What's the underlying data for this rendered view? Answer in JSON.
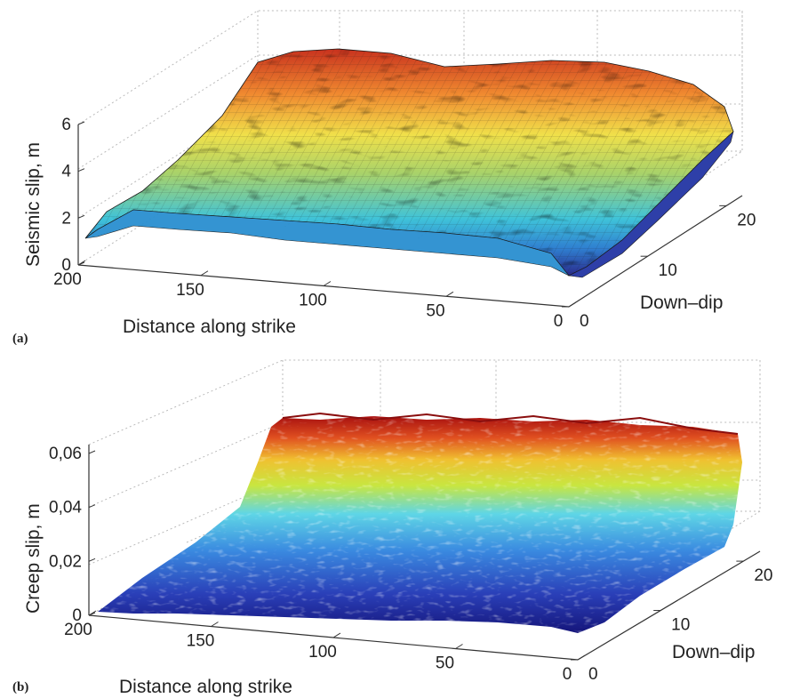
{
  "chart_data": [
    {
      "type": "surface",
      "panel_label": "(a)",
      "zlabel": "Seismic slip, m",
      "xlabel": "Distance along strike",
      "ylabel": "Down–dip",
      "x_ticks": [
        "200",
        "150",
        "100",
        "50",
        "0"
      ],
      "y_ticks": [
        "0",
        "10",
        "20"
      ],
      "z_ticks": [
        "0",
        "2",
        "4",
        "6"
      ],
      "xlim": [
        0,
        200
      ],
      "ylim": [
        0,
        22
      ],
      "zlim": [
        0,
        6
      ],
      "colormap": "jet",
      "mesh_lines": true,
      "grid": true,
      "surface_profile": {
        "description_values": "seismic slip rises with down-dip distance",
        "down_dip": [
          0,
          2,
          4,
          6,
          8,
          10,
          12,
          14,
          16,
          18,
          20,
          22
        ],
        "slip": [
          0.8,
          1.6,
          2.2,
          2.7,
          3.2,
          3.7,
          4.1,
          4.5,
          4.8,
          5.1,
          5.3,
          5.4
        ]
      }
    },
    {
      "type": "surface",
      "panel_label": "(b)",
      "zlabel": "Creep slip, m",
      "xlabel": "Distance along strike",
      "ylabel": "Down–dip",
      "x_ticks": [
        "200",
        "150",
        "100",
        "50",
        "0"
      ],
      "y_ticks": [
        "0",
        "10",
        "20"
      ],
      "z_ticks": [
        "0",
        "0,02",
        "0,04",
        "0,06"
      ],
      "xlim": [
        0,
        200
      ],
      "ylim": [
        0,
        22
      ],
      "zlim": [
        0,
        0.065
      ],
      "colormap": "jet",
      "mesh_lines": false,
      "grid": true,
      "surface_profile": {
        "down_dip": [
          0,
          2,
          4,
          6,
          8,
          10,
          12,
          14,
          16,
          18,
          20,
          22
        ],
        "slip": [
          0.001,
          0.002,
          0.004,
          0.007,
          0.011,
          0.016,
          0.024,
          0.034,
          0.045,
          0.055,
          0.061,
          0.063
        ]
      }
    }
  ]
}
